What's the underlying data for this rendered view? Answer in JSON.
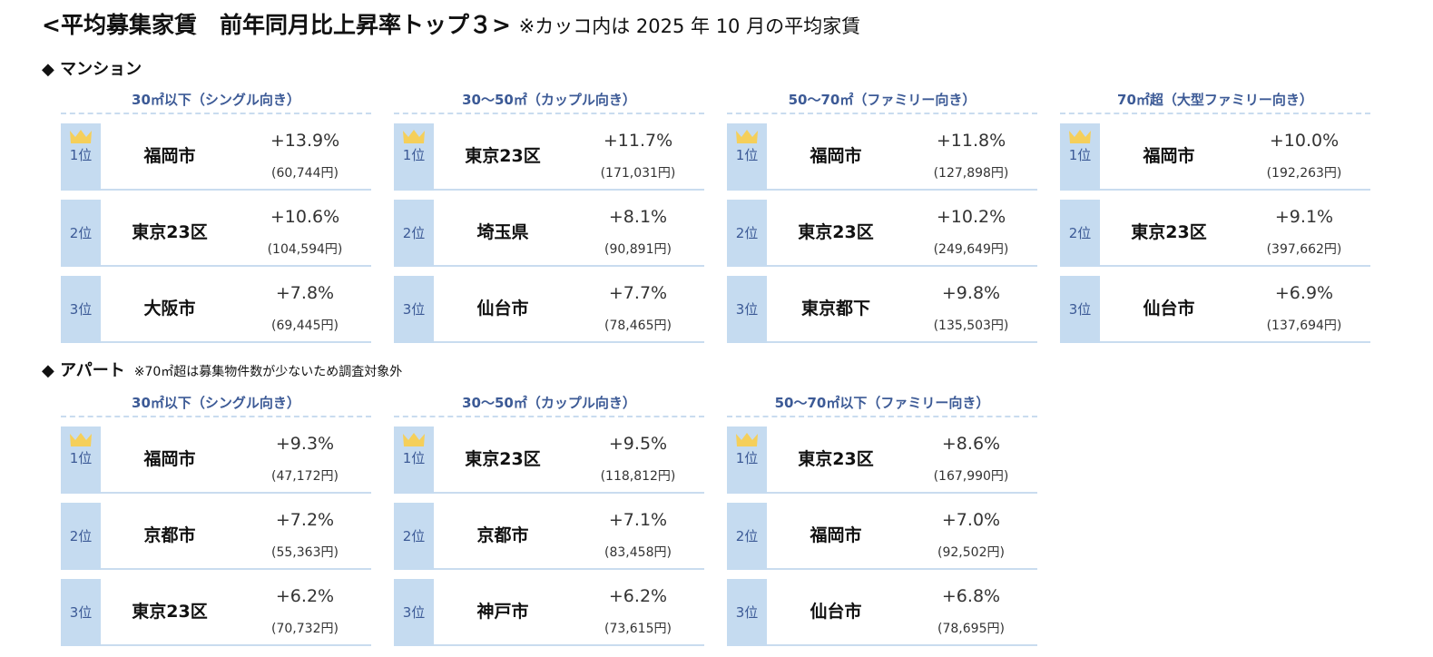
{
  "title": {
    "main": "<平均募集家賃　前年同月比上昇率トップ３>",
    "note": "※カッコ内は 2025 年 10 月の平均家賃"
  },
  "colors": {
    "header_text": "#3c5a96",
    "rank_bg": "#c5dbf0",
    "crown": "#f5cf5a",
    "divider": "#c9dcef"
  },
  "sections": [
    {
      "label": "◆ マンション",
      "note": "",
      "columns": [
        {
          "header": "30㎡以下（シングル向き）",
          "rows": [
            {
              "rank": "1位",
              "city": "福岡市",
              "pct": "+13.9%",
              "rent": "(60,744円)"
            },
            {
              "rank": "2位",
              "city": "東京23区",
              "pct": "+10.6%",
              "rent": "(104,594円)"
            },
            {
              "rank": "3位",
              "city": "大阪市",
              "pct": "+7.8%",
              "rent": "(69,445円)"
            }
          ]
        },
        {
          "header": "30～50㎡（カップル向き）",
          "rows": [
            {
              "rank": "1位",
              "city": "東京23区",
              "pct": "+11.7%",
              "rent": "(171,031円)"
            },
            {
              "rank": "2位",
              "city": "埼玉県",
              "pct": "+8.1%",
              "rent": "(90,891円)"
            },
            {
              "rank": "3位",
              "city": "仙台市",
              "pct": "+7.7%",
              "rent": "(78,465円)"
            }
          ]
        },
        {
          "header": "50～70㎡（ファミリー向き）",
          "rows": [
            {
              "rank": "1位",
              "city": "福岡市",
              "pct": "+11.8%",
              "rent": "(127,898円)"
            },
            {
              "rank": "2位",
              "city": "東京23区",
              "pct": "+10.2%",
              "rent": "(249,649円)"
            },
            {
              "rank": "3位",
              "city": "東京都下",
              "pct": "+9.8%",
              "rent": "(135,503円)"
            }
          ]
        },
        {
          "header": "70㎡超（大型ファミリー向き）",
          "rows": [
            {
              "rank": "1位",
              "city": "福岡市",
              "pct": "+10.0%",
              "rent": "(192,263円)"
            },
            {
              "rank": "2位",
              "city": "東京23区",
              "pct": "+9.1%",
              "rent": "(397,662円)"
            },
            {
              "rank": "3位",
              "city": "仙台市",
              "pct": "+6.9%",
              "rent": "(137,694円)"
            }
          ]
        }
      ]
    },
    {
      "label": "◆ アパート",
      "note": "※70㎡超は募集物件数が少ないため調査対象外",
      "columns": [
        {
          "header": "30㎡以下（シングル向き）",
          "rows": [
            {
              "rank": "1位",
              "city": "福岡市",
              "pct": "+9.3%",
              "rent": "(47,172円)"
            },
            {
              "rank": "2位",
              "city": "京都市",
              "pct": "+7.2%",
              "rent": "(55,363円)"
            },
            {
              "rank": "3位",
              "city": "東京23区",
              "pct": "+6.2%",
              "rent": "(70,732円)"
            }
          ]
        },
        {
          "header": "30～50㎡（カップル向き）",
          "rows": [
            {
              "rank": "1位",
              "city": "東京23区",
              "pct": "+9.5%",
              "rent": "(118,812円)"
            },
            {
              "rank": "2位",
              "city": "京都市",
              "pct": "+7.1%",
              "rent": "(83,458円)"
            },
            {
              "rank": "3位",
              "city": "神戸市",
              "pct": "+6.2%",
              "rent": "(73,615円)"
            }
          ]
        },
        {
          "header": "50～70㎡以下（ファミリー向き）",
          "rows": [
            {
              "rank": "1位",
              "city": "東京23区",
              "pct": "+8.6%",
              "rent": "(167,990円)"
            },
            {
              "rank": "2位",
              "city": "福岡市",
              "pct": "+7.0%",
              "rent": "(92,502円)"
            },
            {
              "rank": "3位",
              "city": "仙台市",
              "pct": "+6.8%",
              "rent": "(78,695円)"
            }
          ]
        }
      ]
    }
  ]
}
